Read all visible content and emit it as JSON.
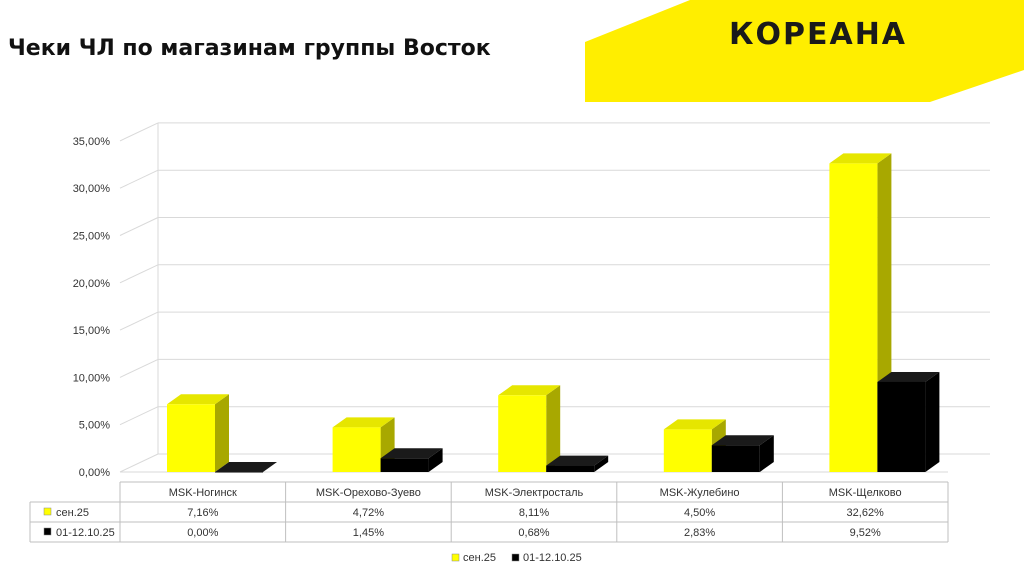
{
  "title": "Чеки ЧЛ по магазинам группы Восток",
  "logo": {
    "text": "КОРЕАНА",
    "band_color": "#ffee00",
    "text_color": "#1a1a1a"
  },
  "chart_data": {
    "type": "bar",
    "categories": [
      "MSK-Ногинск",
      "MSK-Орехово-Зуево",
      "MSK-Электросталь",
      "MSK-Жулебино",
      "MSK-Щелково"
    ],
    "series": [
      {
        "name": "сен.25",
        "values": [
          7.16,
          4.72,
          8.11,
          4.5,
          32.62
        ],
        "labels": [
          "7,16%",
          "4,72%",
          "8,11%",
          "4,50%",
          "32,62%"
        ],
        "color": "#ffff00"
      },
      {
        "name": "01-12.10.25",
        "values": [
          0.0,
          1.45,
          0.68,
          2.83,
          9.52
        ],
        "labels": [
          "0,00%",
          "1,45%",
          "0,68%",
          "2,83%",
          "9,52%"
        ],
        "color": "#000000"
      }
    ],
    "ylim": [
      0,
      35
    ],
    "y_ticks": [
      "0,00%",
      "5,00%",
      "10,00%",
      "15,00%",
      "20,00%",
      "25,00%",
      "30,00%",
      "35,00%"
    ],
    "grid": true,
    "legend": "bottom",
    "data_table": true
  }
}
